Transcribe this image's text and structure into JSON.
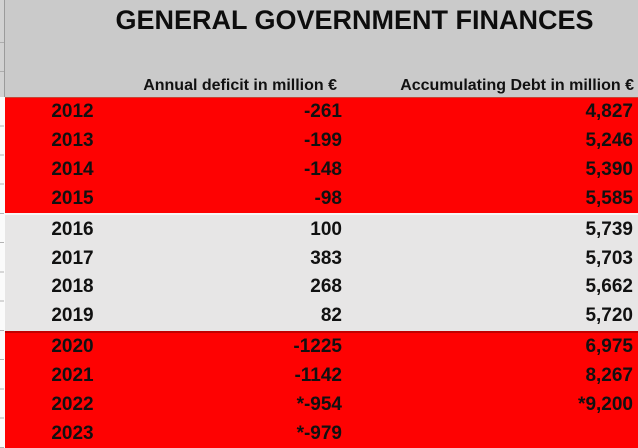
{
  "title": "GENERAL GOVERNMENT FINANCES",
  "columns": {
    "deficit": "Annual deficit in million €",
    "debt": "Accumulating Debt in million €"
  },
  "rows": [
    {
      "year": "2012",
      "deficit": "-261",
      "debt": "4,827",
      "band": "red"
    },
    {
      "year": "2013",
      "deficit": "-199",
      "debt": "5,246",
      "band": "red"
    },
    {
      "year": "2014",
      "deficit": "-148",
      "debt": "5,390",
      "band": "red"
    },
    {
      "year": "2015",
      "deficit": "-98",
      "debt": "5,585",
      "band": "red"
    },
    {
      "year": "2016",
      "deficit": "100",
      "debt": "5,739",
      "band": "gray"
    },
    {
      "year": "2017",
      "deficit": "383",
      "debt": "5,703",
      "band": "gray"
    },
    {
      "year": "2018",
      "deficit": "268",
      "debt": "5,662",
      "band": "gray"
    },
    {
      "year": "2019",
      "deficit": "82",
      "debt": "5,720",
      "band": "gray"
    },
    {
      "year": "2020",
      "deficit": "-1225",
      "debt": "6,975",
      "band": "red"
    },
    {
      "year": "2021",
      "deficit": "-1142",
      "debt": "8,267",
      "band": "red"
    },
    {
      "year": "2022",
      "deficit": "*-954",
      "debt": "*9,200",
      "band": "red"
    },
    {
      "year": "2023",
      "deficit": "*-979",
      "debt": "",
      "band": "red"
    }
  ],
  "colors": {
    "band_red": "#fe0202",
    "band_gray": "#e7e6e6",
    "header_gray": "#cacaca",
    "text": "#111111",
    "red_block_border": "#c00000"
  }
}
